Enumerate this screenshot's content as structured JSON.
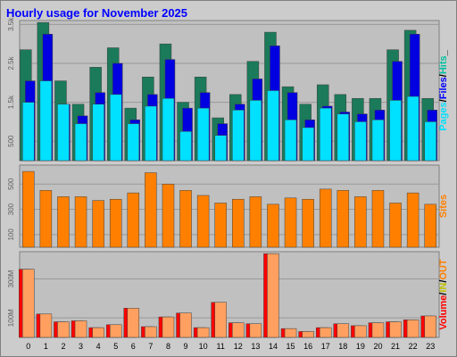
{
  "chart_data": [
    {
      "type": "bar",
      "title": "Hourly usage for November 2025",
      "categories": [
        "0",
        "1",
        "2",
        "3",
        "4",
        "5",
        "6",
        "7",
        "8",
        "9",
        "10",
        "11",
        "12",
        "13",
        "14",
        "15",
        "16",
        "17",
        "18",
        "19",
        "20",
        "21",
        "22",
        "23"
      ],
      "ylim": [
        0,
        3600
      ],
      "yticks": [
        500,
        1500,
        2500,
        3500
      ],
      "yticks_labels": [
        "500",
        "1.5k",
        "2.5k",
        "3.5k"
      ],
      "ylabel_parts": [
        {
          "text": "Pages",
          "color": "#00e0ff"
        },
        {
          "text": "/",
          "color": "#000000"
        },
        {
          "text": "Files",
          "color": "#0000ff"
        },
        {
          "text": "/",
          "color": "#000000"
        },
        {
          "text": "Hits",
          "color": "#00c0a0"
        },
        {
          "text": "_",
          "color": "#000000"
        }
      ],
      "series": [
        {
          "name": "Hits",
          "color": "#1a7a5a",
          "values": [
            2850,
            3550,
            2050,
            1450,
            2400,
            2900,
            1350,
            2150,
            3000,
            1500,
            2150,
            1100,
            1700,
            2550,
            3300,
            1900,
            1450,
            1950,
            1700,
            1600,
            1600,
            2850,
            3350,
            1600
          ]
        },
        {
          "name": "Files",
          "color": "#0000e0",
          "values": [
            2050,
            3250,
            1450,
            1150,
            1750,
            2500,
            1050,
            1700,
            2600,
            1350,
            1750,
            950,
            1450,
            2100,
            2950,
            1750,
            1050,
            1400,
            1250,
            1200,
            1300,
            2550,
            3250,
            1300
          ]
        },
        {
          "name": "Pages",
          "color": "#00e0ff",
          "values": [
            1500,
            2050,
            1450,
            950,
            1450,
            1700,
            950,
            1400,
            1600,
            750,
            1350,
            650,
            1300,
            1550,
            1800,
            1050,
            850,
            1350,
            1200,
            1000,
            1050,
            1550,
            1650,
            1000
          ]
        }
      ]
    },
    {
      "type": "bar",
      "categories": [
        "0",
        "1",
        "2",
        "3",
        "4",
        "5",
        "6",
        "7",
        "8",
        "9",
        "10",
        "11",
        "12",
        "13",
        "14",
        "15",
        "16",
        "17",
        "18",
        "19",
        "20",
        "21",
        "22",
        "23"
      ],
      "ylim": [
        0,
        650
      ],
      "yticks": [
        100,
        300,
        500
      ],
      "yticks_labels": [
        "100",
        "300",
        "500"
      ],
      "ylabel_parts": [
        {
          "text": "Sites",
          "color": "#ff8000"
        }
      ],
      "series": [
        {
          "name": "Sites",
          "color": "#ff8000",
          "values": [
            600,
            450,
            400,
            400,
            370,
            380,
            430,
            590,
            500,
            450,
            410,
            350,
            380,
            400,
            340,
            390,
            380,
            460,
            450,
            400,
            450,
            350,
            430,
            340
          ]
        }
      ]
    },
    {
      "type": "bar",
      "categories": [
        "0",
        "1",
        "2",
        "3",
        "4",
        "5",
        "6",
        "7",
        "8",
        "9",
        "10",
        "11",
        "12",
        "13",
        "14",
        "15",
        "16",
        "17",
        "18",
        "19",
        "20",
        "21",
        "22",
        "23"
      ],
      "ylim": [
        0,
        440
      ],
      "yticks": [
        100,
        300
      ],
      "yticks_labels": [
        "100M",
        "300M"
      ],
      "ylabel_parts": [
        {
          "text": "Volume",
          "color": "#ff0000"
        },
        {
          "text": "/",
          "color": "#000000"
        },
        {
          "text": "IN",
          "color": "#c0c000"
        },
        {
          "text": "/",
          "color": "#000000"
        },
        {
          "text": "OUT",
          "color": "#ff8000"
        }
      ],
      "series": [
        {
          "name": "IN",
          "color": "#ff0000",
          "values": [
            350,
            120,
            80,
            85,
            50,
            65,
            150,
            55,
            105,
            125,
            50,
            180,
            75,
            70,
            430,
            45,
            30,
            50,
            70,
            60,
            75,
            80,
            90,
            110
          ]
        },
        {
          "name": "OUT",
          "color": "#ffa060",
          "values": [
            350,
            120,
            80,
            85,
            50,
            65,
            150,
            55,
            105,
            125,
            50,
            180,
            75,
            70,
            430,
            45,
            30,
            50,
            70,
            60,
            75,
            80,
            90,
            110
          ]
        }
      ]
    }
  ]
}
